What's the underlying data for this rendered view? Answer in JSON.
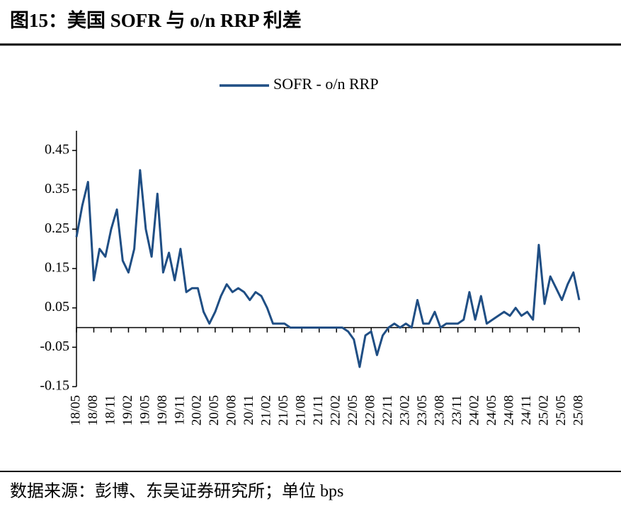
{
  "chart_data": {
    "type": "line",
    "title": "图15：美国 SOFR 与 o/n RRP 利差",
    "source": "数据来源：彭博、东吴证券研究所；单位 bps",
    "categories": [
      "18/05",
      null,
      null,
      "18/08",
      null,
      null,
      "18/11",
      null,
      null,
      "19/02",
      null,
      null,
      "19/05",
      null,
      null,
      "19/08",
      null,
      null,
      "19/11",
      null,
      null,
      "20/02",
      null,
      null,
      "20/05",
      null,
      null,
      "20/08",
      null,
      null,
      "20/11",
      null,
      null,
      "21/02",
      null,
      null,
      "21/05",
      null,
      null,
      "21/08",
      null,
      null,
      "21/11",
      null,
      null,
      "22/02",
      null,
      null,
      "22/05",
      null,
      null,
      "22/08",
      null,
      null,
      "22/11",
      null,
      null,
      "23/02",
      null,
      null,
      "23/05",
      null,
      null,
      "23/08",
      null,
      null,
      "23/11",
      null,
      null,
      "24/02",
      null,
      null,
      "24/05",
      null,
      null,
      "24/08",
      null,
      null,
      "24/11",
      null,
      null,
      "25/02",
      null,
      null,
      "25/05",
      null,
      null,
      "25/08"
    ],
    "series": [
      {
        "name": "SOFR - o/n RRP",
        "color": "#1f4e84",
        "values": [
          0.23,
          0.31,
          0.37,
          0.12,
          0.2,
          0.18,
          0.25,
          0.3,
          0.17,
          0.14,
          0.2,
          0.4,
          0.25,
          0.18,
          0.34,
          0.14,
          0.19,
          0.12,
          0.2,
          0.09,
          0.1,
          0.1,
          0.04,
          0.01,
          0.04,
          0.08,
          0.11,
          0.09,
          0.1,
          0.09,
          0.07,
          0.09,
          0.08,
          0.05,
          0.01,
          0.01,
          0.01,
          0,
          0,
          0,
          0,
          0,
          0,
          0,
          0,
          0,
          0,
          -0.01,
          -0.03,
          -0.1,
          -0.02,
          -0.01,
          -0.07,
          -0.02,
          0,
          0.01,
          0,
          0.01,
          0,
          0.07,
          0.01,
          0.01,
          0.04,
          0,
          0.01,
          0.01,
          0.01,
          0.02,
          0.09,
          0.02,
          0.08,
          0.01,
          0.02,
          0.03,
          0.04,
          0.03,
          0.05,
          0.03,
          0.04,
          0.02,
          0.21,
          0.06,
          0.13,
          0.1,
          0.07,
          0.11,
          0.14,
          0.07
        ]
      }
    ],
    "ylim": [
      -0.15,
      0.5
    ],
    "yticks": [
      -0.15,
      -0.05,
      0.05,
      0.15,
      0.25,
      0.35,
      0.45
    ],
    "legend": "top"
  }
}
